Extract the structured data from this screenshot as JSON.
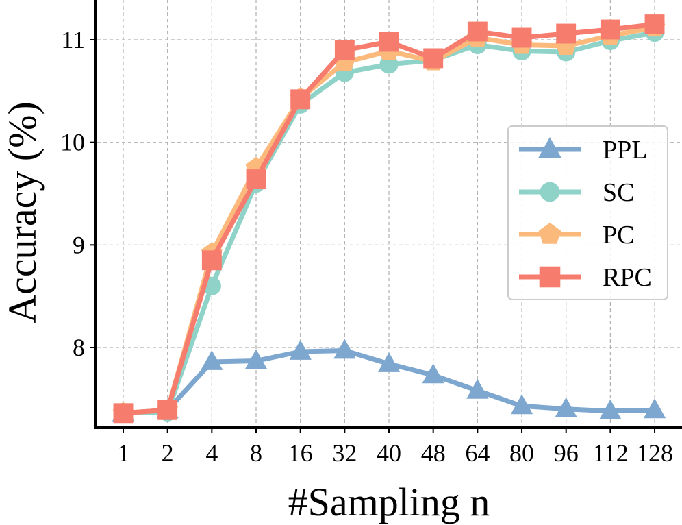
{
  "chart_data": {
    "type": "line",
    "title": "",
    "xlabel": "#Sampling n",
    "ylabel": "Accuracy (%)",
    "categories": [
      "1",
      "2",
      "4",
      "8",
      "16",
      "32",
      "40",
      "48",
      "64",
      "80",
      "96",
      "112",
      "128"
    ],
    "yticks": [
      "8",
      "9",
      "10",
      "11"
    ],
    "ylim": [
      7.35,
      11.4
    ],
    "grid": true,
    "legend_position": "center-right",
    "series": [
      {
        "name": "PPL",
        "color": "#7DA7CF",
        "marker": "triangle",
        "values": [
          7.36,
          7.39,
          7.86,
          7.87,
          7.96,
          7.97,
          7.84,
          7.73,
          7.58,
          7.43,
          7.4,
          7.38,
          7.39
        ]
      },
      {
        "name": "SC",
        "color": "#8FD3C8",
        "marker": "circle",
        "values": [
          7.36,
          7.37,
          8.6,
          9.6,
          10.37,
          10.68,
          10.76,
          10.8,
          10.95,
          10.89,
          10.88,
          10.99,
          11.07
        ]
      },
      {
        "name": "PC",
        "color": "#FBB97C",
        "marker": "pentagon",
        "values": [
          7.36,
          7.39,
          8.92,
          9.75,
          10.43,
          10.78,
          10.89,
          10.79,
          11.02,
          10.95,
          10.94,
          11.04,
          11.12
        ]
      },
      {
        "name": "RPC",
        "color": "#F67C6E",
        "marker": "square",
        "values": [
          7.36,
          7.39,
          8.85,
          9.64,
          10.42,
          10.9,
          10.98,
          10.82,
          11.08,
          11.02,
          11.06,
          11.1,
          11.15
        ]
      }
    ]
  }
}
